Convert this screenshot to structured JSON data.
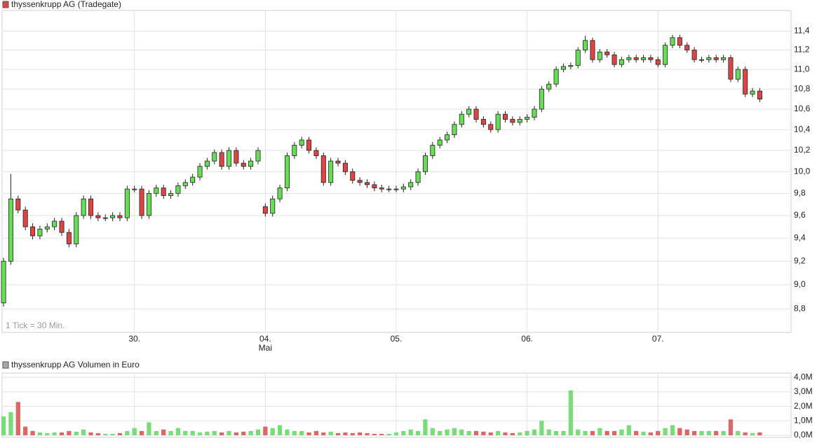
{
  "chart_data": {
    "type": "candlestick",
    "title": "thyssenkrupp AG (Tradegate)",
    "note": "1 Tick = 30 Min.",
    "log": true,
    "grid": true,
    "up_color": "#66dd55",
    "down_color": "#dd4444",
    "xlim": [
      -0.2,
      108.3
    ],
    "xticks": [
      {
        "value": 18,
        "label": "30."
      },
      {
        "value": 36,
        "label": "04."
      },
      {
        "value": 54,
        "label": "05."
      },
      {
        "value": 72,
        "label": "06."
      },
      {
        "value": 90,
        "label": "07."
      }
    ],
    "month_labels": [
      {
        "value": 36,
        "label": "Mai"
      }
    ],
    "ylim": [
      8.61,
      11.62
    ],
    "yticks": [
      {
        "value": 8.8,
        "label": "8,8"
      },
      {
        "value": 9.0,
        "label": "9,0"
      },
      {
        "value": 9.2,
        "label": "9,2"
      },
      {
        "value": 9.4,
        "label": "9,4"
      },
      {
        "value": 9.6,
        "label": "9,6"
      },
      {
        "value": 9.8,
        "label": "9,8"
      },
      {
        "value": 10.0,
        "label": "10,0"
      },
      {
        "value": 10.2,
        "label": "10,2"
      },
      {
        "value": 10.4,
        "label": "10,4"
      },
      {
        "value": 10.6,
        "label": "10,6"
      },
      {
        "value": 10.8,
        "label": "10,8"
      },
      {
        "value": 11.0,
        "label": "11,0"
      },
      {
        "value": 11.2,
        "label": "11,2"
      },
      {
        "value": 11.4,
        "label": "11,4"
      }
    ],
    "open": [
      8.85,
      9.2,
      9.75,
      9.65,
      9.5,
      9.42,
      9.48,
      9.5,
      9.55,
      9.45,
      9.35,
      9.6,
      9.75,
      9.6,
      9.58,
      9.58,
      9.6,
      9.58,
      9.84,
      9.84,
      9.6,
      9.8,
      9.85,
      9.78,
      9.8,
      9.87,
      9.9,
      9.95,
      10.05,
      10.1,
      10.18,
      10.05,
      10.2,
      10.08,
      10.05,
      10.1,
      9.68,
      9.62,
      9.75,
      9.85,
      10.15,
      10.25,
      10.3,
      10.2,
      10.15,
      9.9,
      10.1,
      10.08,
      10.0,
      9.92,
      9.9,
      9.88,
      9.85,
      9.84,
      9.84,
      9.84,
      9.86,
      9.9,
      10.0,
      10.15,
      10.25,
      10.3,
      10.35,
      10.45,
      10.55,
      10.6,
      10.5,
      10.45,
      10.4,
      10.55,
      10.5,
      10.47,
      10.5,
      10.52,
      10.6,
      10.8,
      10.85,
      11.0,
      11.03,
      11.04,
      11.2,
      11.3,
      11.1,
      11.18,
      11.15,
      11.05,
      11.1,
      11.12,
      11.1,
      11.12,
      11.1,
      11.05,
      11.25,
      11.33,
      11.25,
      11.2,
      11.1,
      11.1,
      11.12,
      11.1,
      11.12,
      10.9,
      11.0,
      10.75,
      10.78
    ],
    "high": [
      9.23,
      9.98,
      9.78,
      9.68,
      9.53,
      9.51,
      9.53,
      9.58,
      9.58,
      9.48,
      9.63,
      9.78,
      9.78,
      9.63,
      9.61,
      9.63,
      9.63,
      9.87,
      9.87,
      9.87,
      9.83,
      9.88,
      9.88,
      9.83,
      9.9,
      9.93,
      9.98,
      10.08,
      10.13,
      10.21,
      10.21,
      10.23,
      10.23,
      10.11,
      10.13,
      10.23,
      9.71,
      9.78,
      9.88,
      10.18,
      10.28,
      10.33,
      10.33,
      10.23,
      10.18,
      10.13,
      10.13,
      10.11,
      10.03,
      9.95,
      9.93,
      9.91,
      9.88,
      9.87,
      9.87,
      9.89,
      9.93,
      10.03,
      10.18,
      10.28,
      10.33,
      10.38,
      10.48,
      10.58,
      10.63,
      10.63,
      10.53,
      10.48,
      10.58,
      10.58,
      10.53,
      10.53,
      10.55,
      10.63,
      10.83,
      10.88,
      11.03,
      11.06,
      11.07,
      11.23,
      11.35,
      11.33,
      11.21,
      11.21,
      11.18,
      11.13,
      11.15,
      11.15,
      11.15,
      11.15,
      11.13,
      11.28,
      11.36,
      11.36,
      11.28,
      11.23,
      11.13,
      11.15,
      11.15,
      11.15,
      11.15,
      11.03,
      11.03,
      10.81,
      10.81
    ],
    "low": [
      8.82,
      9.17,
      9.62,
      9.47,
      9.39,
      9.39,
      9.45,
      9.47,
      9.42,
      9.32,
      9.32,
      9.57,
      9.57,
      9.55,
      9.55,
      9.55,
      9.55,
      9.55,
      9.81,
      9.57,
      9.57,
      9.77,
      9.75,
      9.75,
      9.77,
      9.84,
      9.87,
      9.92,
      10.02,
      10.07,
      10.02,
      10.02,
      10.05,
      10.02,
      10.02,
      10.07,
      9.59,
      9.59,
      9.72,
      9.82,
      10.12,
      10.22,
      10.17,
      10.12,
      9.87,
      9.87,
      10.05,
      9.97,
      9.89,
      9.87,
      9.85,
      9.82,
      9.81,
      9.81,
      9.81,
      9.81,
      9.83,
      9.87,
      9.97,
      10.12,
      10.22,
      10.27,
      10.32,
      10.42,
      10.52,
      10.47,
      10.42,
      10.37,
      10.37,
      10.47,
      10.44,
      10.44,
      10.47,
      10.49,
      10.57,
      10.77,
      10.82,
      10.97,
      11.0,
      11.01,
      11.17,
      11.07,
      11.07,
      11.12,
      11.02,
      11.02,
      11.07,
      11.07,
      11.07,
      11.07,
      11.02,
      11.02,
      11.22,
      11.22,
      11.17,
      11.07,
      11.07,
      11.07,
      11.07,
      11.07,
      10.87,
      10.87,
      10.72,
      10.72,
      10.67
    ],
    "close": [
      9.2,
      9.75,
      9.65,
      9.5,
      9.42,
      9.48,
      9.5,
      9.55,
      9.45,
      9.35,
      9.6,
      9.75,
      9.6,
      9.58,
      9.58,
      9.6,
      9.58,
      9.84,
      9.84,
      9.6,
      9.8,
      9.85,
      9.78,
      9.8,
      9.87,
      9.9,
      9.95,
      10.05,
      10.1,
      10.18,
      10.05,
      10.2,
      10.08,
      10.05,
      10.1,
      10.2,
      9.62,
      9.75,
      9.85,
      10.15,
      10.25,
      10.3,
      10.2,
      10.15,
      9.9,
      10.1,
      10.08,
      10.0,
      9.92,
      9.9,
      9.88,
      9.85,
      9.84,
      9.84,
      9.84,
      9.86,
      9.9,
      10.0,
      10.15,
      10.25,
      10.3,
      10.35,
      10.45,
      10.55,
      10.6,
      10.5,
      10.45,
      10.4,
      10.55,
      10.5,
      10.47,
      10.5,
      10.52,
      10.6,
      10.8,
      10.85,
      11.0,
      11.03,
      11.04,
      11.2,
      11.3,
      11.1,
      11.18,
      11.15,
      11.05,
      11.1,
      11.12,
      11.1,
      11.12,
      11.1,
      11.05,
      11.25,
      11.33,
      11.25,
      11.2,
      11.1,
      11.1,
      11.12,
      11.1,
      11.12,
      10.9,
      11.0,
      10.75,
      10.78,
      10.7
    ],
    "volume_title": "thyssenkrupp AG Volumen in Euro",
    "volume_up_color": "#77dd77",
    "volume_down_color": "#dd6666",
    "volume_ylim": [
      0,
      4.3
    ],
    "volume_yticks": [
      {
        "value": 0,
        "label": "0,0M"
      },
      {
        "value": 1,
        "label": "1,0M"
      },
      {
        "value": 2,
        "label": "2,0M"
      },
      {
        "value": 3,
        "label": "3,0M"
      },
      {
        "value": 4,
        "label": "4,0M"
      }
    ],
    "volume": [
      1.3,
      1.6,
      2.3,
      0.6,
      0.3,
      0.2,
      0.15,
      0.2,
      0.2,
      0.3,
      0.25,
      0.4,
      0.2,
      0.15,
      0.1,
      0.1,
      0.15,
      0.3,
      0.5,
      0.3,
      0.9,
      0.3,
      0.4,
      0.3,
      0.5,
      0.3,
      0.3,
      0.2,
      0.25,
      0.3,
      0.2,
      0.3,
      0.2,
      0.25,
      0.3,
      0.4,
      0.6,
      0.5,
      0.7,
      0.4,
      0.3,
      0.3,
      0.2,
      0.3,
      0.2,
      0.25,
      0.15,
      0.2,
      0.15,
      0.2,
      0.15,
      0.1,
      0.1,
      0.1,
      0.2,
      0.3,
      0.4,
      0.3,
      1.1,
      0.5,
      0.3,
      0.4,
      0.5,
      0.4,
      0.3,
      0.3,
      0.25,
      0.2,
      0.3,
      0.2,
      0.15,
      0.2,
      0.3,
      0.4,
      1.0,
      0.4,
      0.3,
      0.3,
      3.1,
      0.4,
      0.3,
      0.3,
      0.5,
      0.3,
      0.3,
      0.4,
      0.7,
      0.3,
      0.25,
      0.2,
      0.3,
      0.5,
      0.7,
      0.5,
      0.4,
      0.3,
      0.3,
      0.3,
      0.3,
      0.3,
      1.1,
      0.3,
      0.2,
      0.15,
      0.2
    ]
  }
}
